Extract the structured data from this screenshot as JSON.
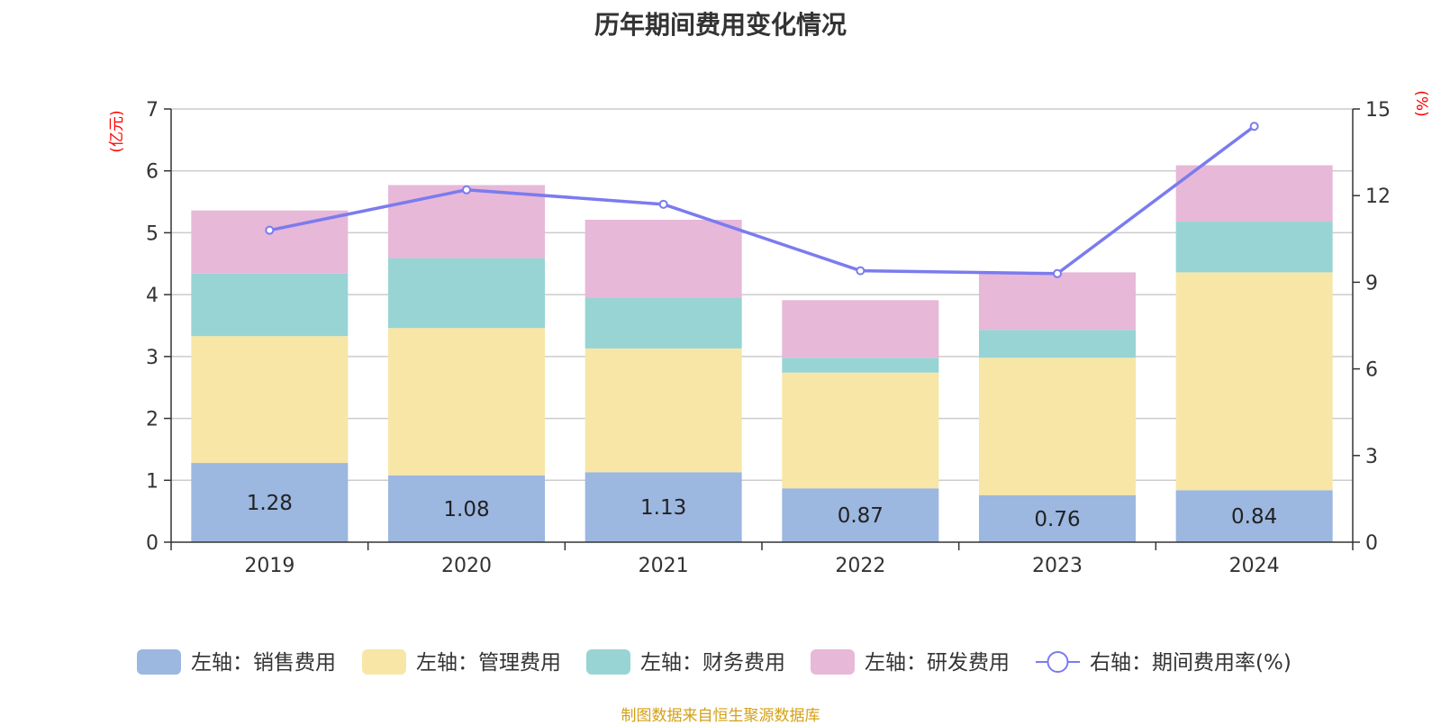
{
  "chart_data": {
    "type": "bar",
    "stacked": true,
    "title": "历年期间费用变化情况",
    "categories": [
      "2019",
      "2020",
      "2021",
      "2022",
      "2023",
      "2024"
    ],
    "left_axis": {
      "unit": "(亿元)",
      "ylim": [
        0,
        7
      ],
      "ticks": [
        0,
        1,
        2,
        3,
        4,
        5,
        6,
        7
      ]
    },
    "right_axis": {
      "unit": "(%)",
      "ylim": [
        0,
        15
      ],
      "ticks": [
        0,
        3,
        6,
        9,
        12,
        15
      ]
    },
    "series": [
      {
        "name": "左轴：销售费用",
        "axis": "left",
        "type": "bar",
        "color": "#9cb7e0",
        "values": [
          1.28,
          1.08,
          1.13,
          0.87,
          0.76,
          0.84
        ],
        "show_labels": true
      },
      {
        "name": "左轴：管理费用",
        "axis": "left",
        "type": "bar",
        "color": "#f7e6a6",
        "values": [
          2.05,
          2.38,
          2.0,
          1.87,
          2.22,
          3.52
        ]
      },
      {
        "name": "左轴：财务费用",
        "axis": "left",
        "type": "bar",
        "color": "#98d4d4",
        "values": [
          1.01,
          1.13,
          0.82,
          0.24,
          0.45,
          0.82
        ]
      },
      {
        "name": "左轴：研发费用",
        "axis": "left",
        "type": "bar",
        "color": "#e7b8d8",
        "values": [
          1.02,
          1.18,
          1.26,
          0.93,
          0.93,
          0.91
        ]
      },
      {
        "name": "右轴：期间费用率(%)",
        "axis": "right",
        "type": "line",
        "color": "#7b7bef",
        "values": [
          10.8,
          12.2,
          11.7,
          9.4,
          9.3,
          14.4
        ]
      }
    ],
    "grid": true,
    "legend_position": "bottom"
  },
  "footer": {
    "source": "制图数据来自恒生聚源数据库"
  }
}
